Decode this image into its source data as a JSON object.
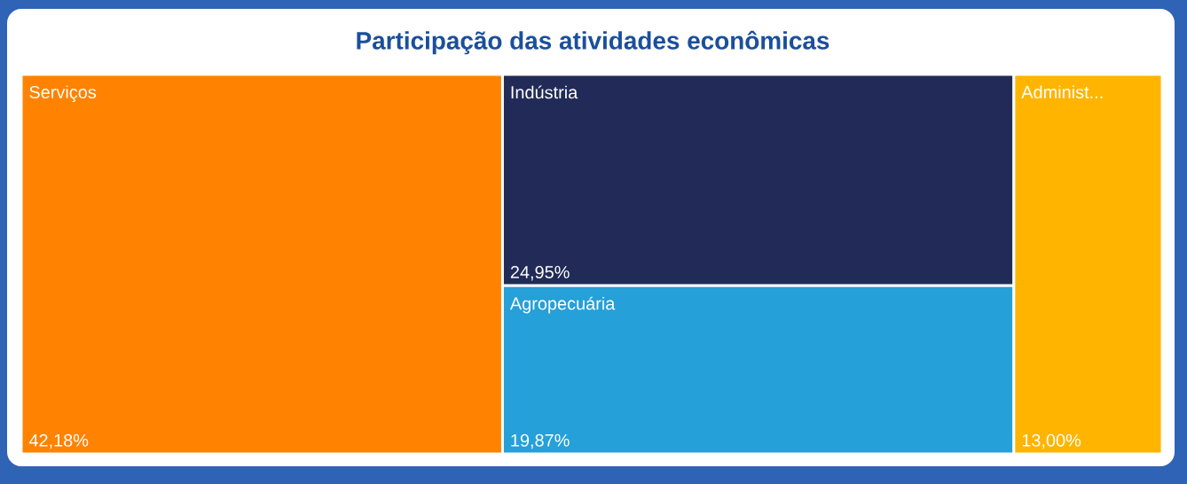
{
  "chart_data": {
    "type": "other",
    "title": "Participação das atividades econômicas",
    "categories": [
      "Serviços",
      "Indústria",
      "Agropecuária",
      "Administ..."
    ],
    "values": [
      42.18,
      24.95,
      19.87,
      13.0
    ],
    "value_labels": [
      "42,18%",
      "24,95%",
      "19,87%",
      "13,00%"
    ],
    "colors": [
      "#ff8200",
      "#222b57",
      "#25a0d8",
      "#ffb400"
    ]
  }
}
